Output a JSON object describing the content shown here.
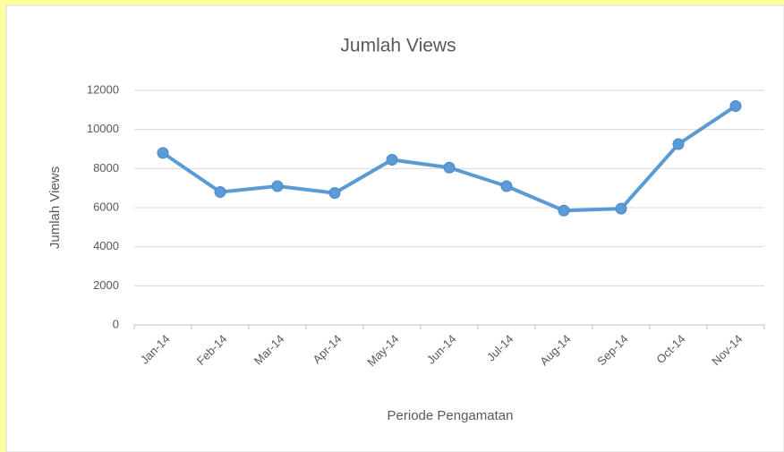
{
  "chart_data": {
    "type": "line",
    "title": "Jumlah Views",
    "x_label": "Periode Pengamatan",
    "y_label": "Jumlah Views",
    "categories": [
      "Jan-14",
      "Feb-14",
      "Mar-14",
      "Apr-14",
      "May-14",
      "Jun-14",
      "Jul-14",
      "Aug-14",
      "Sep-14",
      "Oct-14",
      "Nov-14"
    ],
    "series": [
      {
        "name": "Jumlah Views",
        "color": "#5b9bd5",
        "values": [
          8800,
          6800,
          7100,
          6750,
          8450,
          8050,
          7100,
          5850,
          5950,
          9250,
          11200
        ]
      }
    ],
    "ylim": [
      0,
      12000
    ],
    "yticks": [
      0,
      2000,
      4000,
      6000,
      8000,
      10000,
      12000
    ],
    "grid": true
  }
}
